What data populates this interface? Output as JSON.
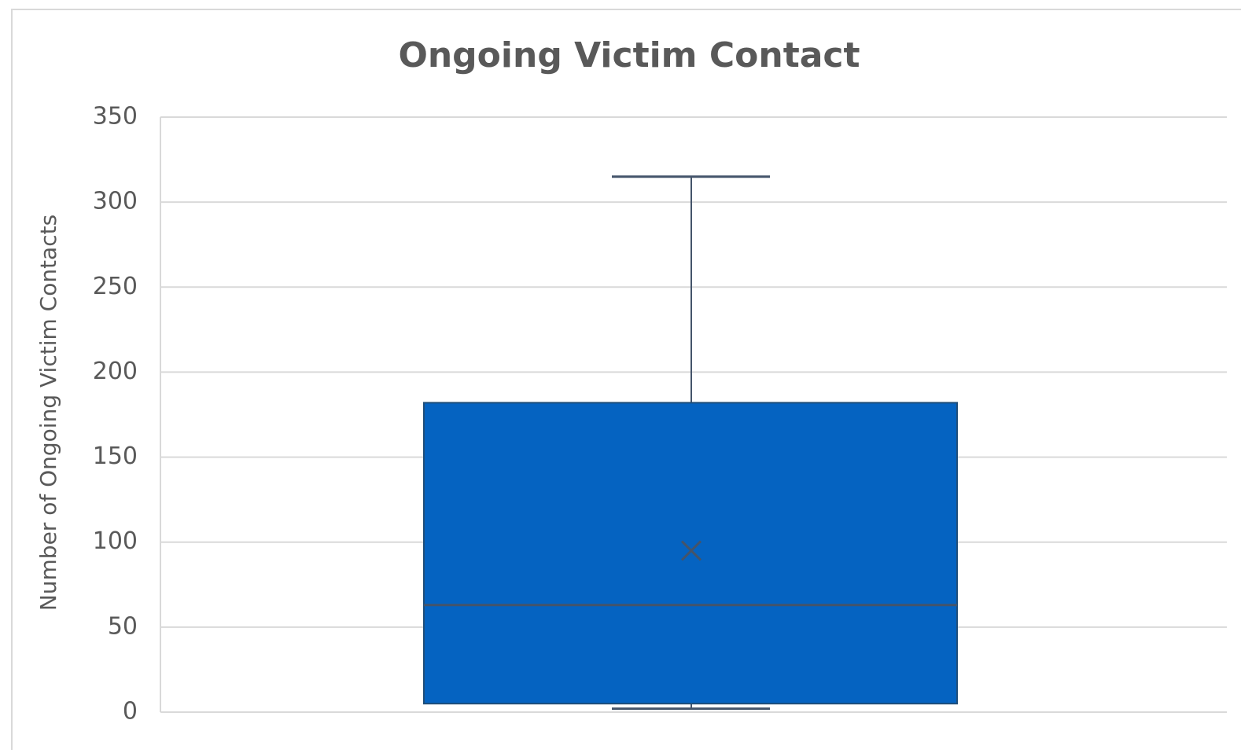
{
  "chart_data": {
    "type": "box",
    "title": "Ongoing Victim Contact",
    "y_label": "Number of Ongoing Victim Contacts",
    "min": 2,
    "q1": 5,
    "median": 63,
    "q3": 182,
    "max": 315,
    "mean": 95,
    "color": "#0563c1",
    "line_color": "#44546a",
    "ylim": [
      0,
      350
    ],
    "yticks": [
      0,
      50,
      100,
      150,
      200,
      250,
      300,
      350
    ],
    "grid": true
  }
}
